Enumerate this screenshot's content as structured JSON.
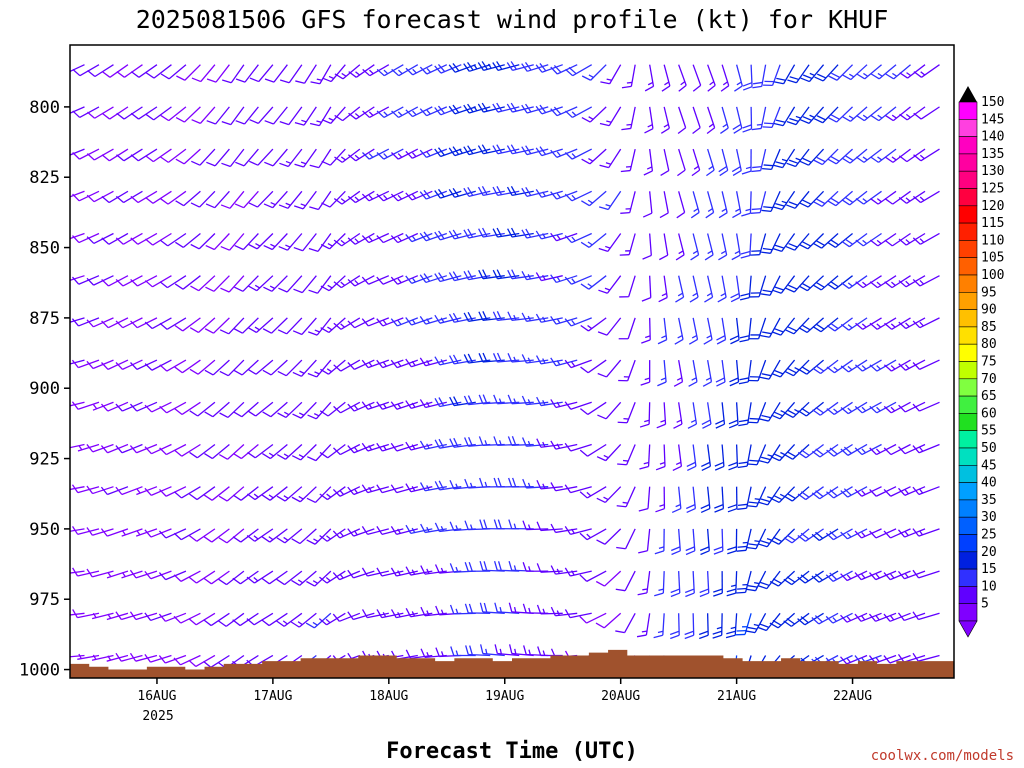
{
  "chart_data": {
    "type": "wind-profile",
    "title": "2025081506 GFS forecast wind profile (kt) for KHUF",
    "xlabel": "Forecast Time (UTC)",
    "ylabel": "",
    "credit": "coolwx.com/models",
    "y_axis": {
      "units": "hPa",
      "inverted": true,
      "range": [
        778,
        1003
      ],
      "ticks": [
        800,
        825,
        850,
        875,
        900,
        925,
        950,
        975,
        1000
      ]
    },
    "x_axis": {
      "start": "2025-08-15 06Z",
      "end": "2025-08-22 21Z",
      "tick_labels": [
        "16AUG",
        "17AUG",
        "18AUG",
        "19AUG",
        "20AUG",
        "21AUG",
        "22AUG"
      ],
      "tick_hours": [
        18,
        42,
        66,
        90,
        114,
        138,
        162
      ],
      "year_label": "2025",
      "range_hours": [
        0,
        183
      ]
    },
    "levels": [
      785,
      800,
      815,
      830,
      845,
      860,
      875,
      890,
      905,
      920,
      935,
      950,
      965,
      980,
      995
    ],
    "colorbar": {
      "values": [
        5,
        10,
        15,
        20,
        25,
        30,
        35,
        40,
        45,
        50,
        55,
        60,
        65,
        70,
        75,
        80,
        85,
        90,
        95,
        100,
        105,
        110,
        115,
        120,
        125,
        130,
        135,
        140,
        145,
        150
      ],
      "colors": [
        "#8000ff",
        "#6000ff",
        "#3030ff",
        "#0020e0",
        "#0040ff",
        "#0060ff",
        "#0080ff",
        "#00a0ff",
        "#00c0e0",
        "#00e0c0",
        "#00f0a0",
        "#20e020",
        "#40f040",
        "#80ff40",
        "#c0ff00",
        "#ffff00",
        "#ffe000",
        "#ffc000",
        "#ffa000",
        "#ff8000",
        "#ff6000",
        "#ff4000",
        "#ff2000",
        "#ff0000",
        "#ff0040",
        "#ff0080",
        "#ff00a0",
        "#ff00c0",
        "#ff40e0",
        "#ff00ff"
      ]
    },
    "terrain": {
      "color": "#a0522d",
      "surface_hpa": [
        998,
        999,
        1000,
        1000,
        999,
        999,
        1000,
        999,
        998,
        998,
        997,
        997,
        996,
        996,
        996,
        995,
        995,
        996,
        996,
        997,
        996,
        996,
        997,
        996,
        996,
        995,
        995,
        994,
        993,
        995,
        995,
        995,
        995,
        995,
        996,
        997,
        997,
        996,
        997,
        997,
        998,
        997,
        998,
        997,
        997,
        997
      ]
    },
    "wind_field": {
      "description": "direction (deg from) and speed (kt) per time column (6-hourly, hours 0..180) and level",
      "hours": [
        0,
        6,
        12,
        18,
        24,
        30,
        36,
        42,
        48,
        54,
        60,
        66,
        72,
        78,
        84,
        90,
        96,
        102,
        108,
        114,
        120,
        126,
        132,
        138,
        144,
        150,
        156,
        162,
        168,
        174,
        180
      ],
      "dir_by_hour": [
        260,
        250,
        245,
        245,
        240,
        230,
        225,
        230,
        225,
        220,
        240,
        250,
        250,
        255,
        260,
        265,
        265,
        260,
        250,
        220,
        180,
        170,
        170,
        175,
        200,
        220,
        230,
        235,
        240,
        240,
        245
      ],
      "speed_upper_by_hour": [
        12,
        11,
        10,
        10,
        10,
        10,
        10,
        12,
        12,
        12,
        14,
        14,
        15,
        18,
        22,
        22,
        20,
        18,
        18,
        15,
        12,
        12,
        14,
        16,
        18,
        22,
        22,
        20,
        16,
        14,
        14
      ],
      "speed_lower_by_hour": [
        7,
        7,
        8,
        8,
        9,
        10,
        10,
        12,
        14,
        14,
        12,
        12,
        12,
        14,
        16,
        17,
        15,
        12,
        10,
        10,
        14,
        18,
        22,
        24,
        25,
        22,
        20,
        17,
        14,
        12,
        12
      ]
    }
  }
}
